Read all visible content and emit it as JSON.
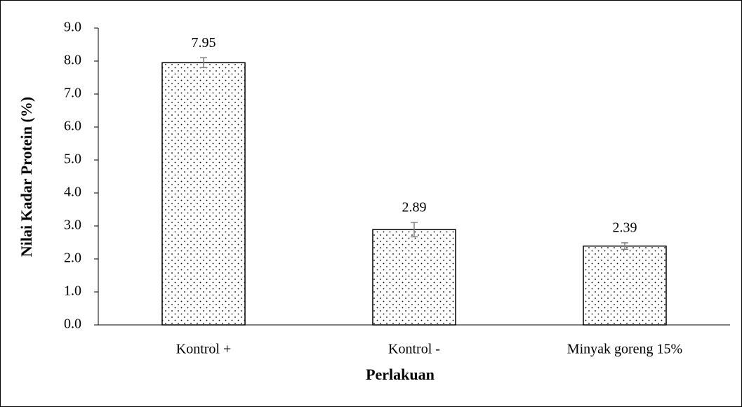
{
  "chart_data": {
    "type": "bar",
    "categories": [
      "Kontrol +",
      "Kontrol -",
      "Minyak goreng 15%"
    ],
    "values": [
      7.95,
      2.89,
      2.39
    ],
    "errors": [
      0.15,
      0.22,
      0.1
    ],
    "color": "#000000",
    "error_color": "#808080",
    "xlabel": "Perlakuan",
    "ylabel": "Nilai Kadar Protein (%)",
    "ylim": [
      0,
      9
    ],
    "yticks": [
      {
        "value": 0,
        "label": "0.0"
      },
      {
        "value": 1,
        "label": "1.0"
      },
      {
        "value": 2,
        "label": "2.0"
      },
      {
        "value": 3,
        "label": "3.0"
      },
      {
        "value": 4,
        "label": "4.0"
      },
      {
        "value": 5,
        "label": "5.0"
      },
      {
        "value": 6,
        "label": "6.0"
      },
      {
        "value": 7,
        "label": "7.0"
      },
      {
        "value": 8,
        "label": "8.0"
      },
      {
        "value": 9,
        "label": "9.0"
      }
    ],
    "grid": false
  }
}
